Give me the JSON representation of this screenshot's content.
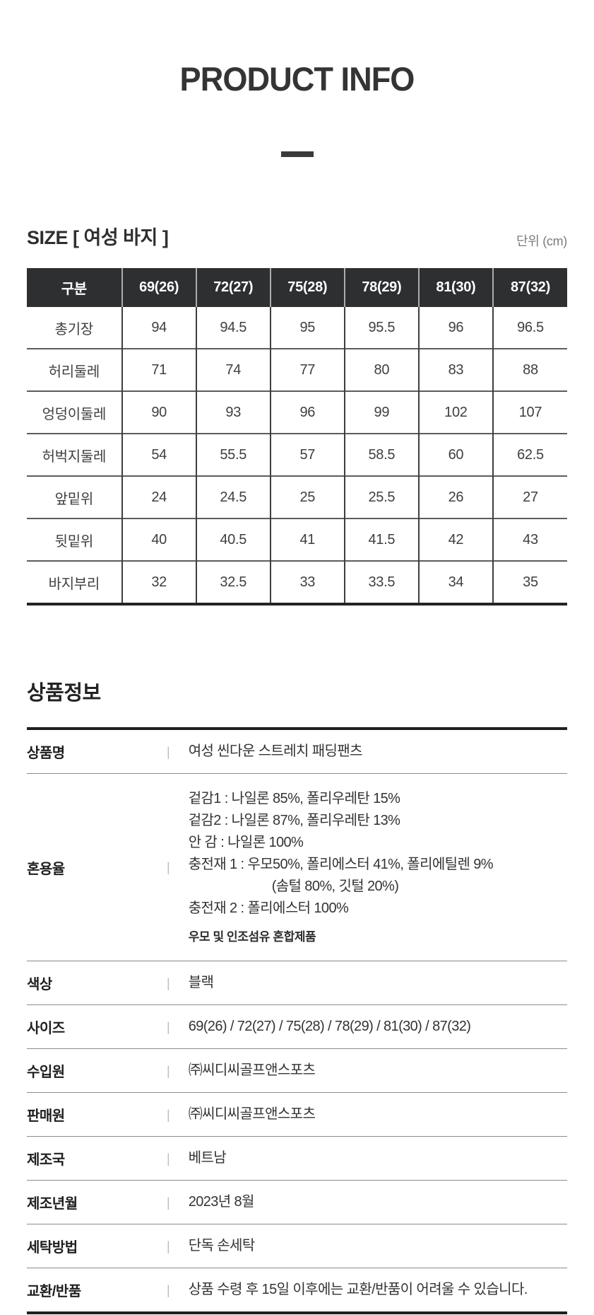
{
  "page": {
    "title": "PRODUCT INFO"
  },
  "size_section": {
    "heading": "SIZE [ 여성 바지 ]",
    "unit": "단위 (cm)",
    "table": {
      "header": [
        "구분",
        "69(26)",
        "72(27)",
        "75(28)",
        "78(29)",
        "81(30)",
        "87(32)"
      ],
      "rows": [
        {
          "label": "총기장",
          "values": [
            "94",
            "94.5",
            "95",
            "95.5",
            "96",
            "96.5"
          ]
        },
        {
          "label": "허리둘레",
          "values": [
            "71",
            "74",
            "77",
            "80",
            "83",
            "88"
          ]
        },
        {
          "label": "엉덩이둘레",
          "values": [
            "90",
            "93",
            "96",
            "99",
            "102",
            "107"
          ]
        },
        {
          "label": "허벅지둘레",
          "values": [
            "54",
            "55.5",
            "57",
            "58.5",
            "60",
            "62.5"
          ]
        },
        {
          "label": "앞밑위",
          "values": [
            "24",
            "24.5",
            "25",
            "25.5",
            "26",
            "27"
          ]
        },
        {
          "label": "뒷밑위",
          "values": [
            "40",
            "40.5",
            "41",
            "41.5",
            "42",
            "43"
          ]
        },
        {
          "label": "바지부리",
          "values": [
            "32",
            "32.5",
            "33",
            "33.5",
            "34",
            "35"
          ]
        }
      ]
    }
  },
  "info_section": {
    "heading": "상품정보",
    "separator": "|",
    "rows": [
      {
        "label": "상품명",
        "value": "여성 씬다운 스트레치 패딩팬츠"
      },
      {
        "label": "혼용율",
        "lines": [
          {
            "text": "겉감1 : 나일론 85%, 폴리우레탄 15%",
            "indent": false
          },
          {
            "text": "겉감2 : 나일론 87%, 폴리우레탄 13%",
            "indent": false
          },
          {
            "text": "안 감 : 나일론 100%",
            "indent": false
          },
          {
            "text": "충전재 1 : 우모50%, 폴리에스터 41%, 폴리에틸렌 9%",
            "indent": false
          },
          {
            "text": "(솜털 80%, 깃털 20%)",
            "indent": true
          },
          {
            "text": "충전재 2 : 폴리에스터 100%",
            "indent": false
          }
        ],
        "note": "우모 및 인조섬유 혼합제품"
      },
      {
        "label": "색상",
        "value": "블랙"
      },
      {
        "label": "사이즈",
        "value": "69(26) / 72(27) / 75(28) / 78(29) / 81(30) / 87(32)"
      },
      {
        "label": "수입원",
        "value": "㈜씨디씨골프앤스포츠"
      },
      {
        "label": "판매원",
        "value": "㈜씨디씨골프앤스포츠"
      },
      {
        "label": "제조국",
        "value": "베트남"
      },
      {
        "label": "제조년월",
        "value": "2023년 8월"
      },
      {
        "label": "세탁방법",
        "value": "단독 손세탁"
      },
      {
        "label": "교환/반품",
        "value": "상품 수령 후 15일 이후에는 교환/반품이 어려울 수 있습니다."
      }
    ]
  },
  "colors": {
    "table_header_bg": "#2d2f30",
    "table_header_text": "#ffffff",
    "body_text": "#333333",
    "thick_rule": "#1f1f1f",
    "thin_rule": "#8b8b8b",
    "unit_text": "#7b7b7b"
  }
}
